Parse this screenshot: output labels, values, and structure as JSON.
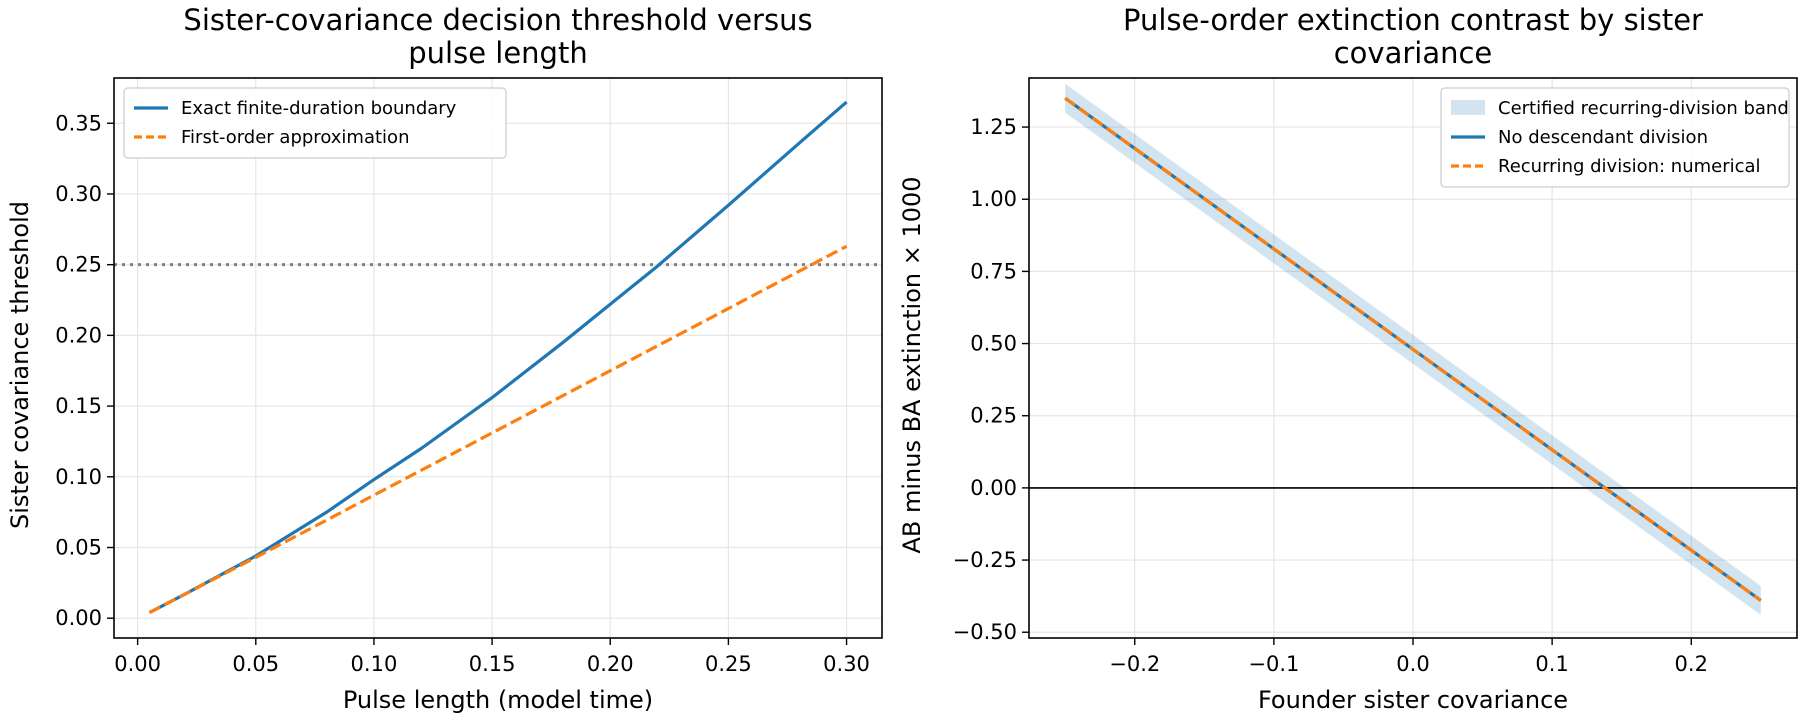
{
  "chart_data": [
    {
      "type": "line",
      "title_lines": [
        "Sister-covariance decision threshold versus",
        "pulse length"
      ],
      "xlabel": "Pulse length (model time)",
      "ylabel": "Sister covariance threshold",
      "xlim": [
        -0.01,
        0.315
      ],
      "ylim": [
        -0.014,
        0.382
      ],
      "xticks": [
        0.0,
        0.05,
        0.1,
        0.15,
        0.2,
        0.25,
        0.3
      ],
      "xtick_labels": [
        "0.00",
        "0.05",
        "0.10",
        "0.15",
        "0.20",
        "0.25",
        "0.30"
      ],
      "yticks": [
        0.0,
        0.05,
        0.1,
        0.15,
        0.2,
        0.25,
        0.3,
        0.35
      ],
      "ytick_labels": [
        "0.00",
        "0.05",
        "0.10",
        "0.15",
        "0.20",
        "0.25",
        "0.30",
        "0.35"
      ],
      "grid": true,
      "legend_position": "top-left",
      "reference_hline": {
        "y": 0.25,
        "color": "#808080",
        "style": "dotted"
      },
      "series": [
        {
          "name": "Exact finite-duration boundary",
          "color": "#1f77b4",
          "style": "solid",
          "x": [
            0.005,
            0.02,
            0.05,
            0.08,
            0.1,
            0.12,
            0.15,
            0.18,
            0.2,
            0.22,
            0.25,
            0.28,
            0.3
          ],
          "y": [
            0.004,
            0.017,
            0.044,
            0.075,
            0.098,
            0.12,
            0.156,
            0.195,
            0.222,
            0.249,
            0.292,
            0.336,
            0.365
          ]
        },
        {
          "name": "First-order approximation",
          "color": "#ff7f0e",
          "style": "dashed",
          "x": [
            0.005,
            0.05,
            0.1,
            0.15,
            0.2,
            0.25,
            0.3
          ],
          "y": [
            0.004,
            0.043,
            0.087,
            0.131,
            0.175,
            0.219,
            0.263
          ]
        }
      ]
    },
    {
      "type": "line",
      "title_lines": [
        "Pulse-order extinction contrast by sister",
        "covariance"
      ],
      "xlabel": "Founder sister covariance",
      "ylabel": "AB minus BA extinction × 1000",
      "xlim": [
        -0.276,
        0.276
      ],
      "ylim": [
        -0.52,
        1.42
      ],
      "xticks": [
        -0.2,
        -0.1,
        0.0,
        0.1,
        0.2
      ],
      "xtick_labels": [
        "−0.2",
        "−0.1",
        "0.0",
        "0.1",
        "0.2"
      ],
      "yticks": [
        -0.5,
        -0.25,
        0.0,
        0.25,
        0.5,
        0.75,
        1.0,
        1.25
      ],
      "ytick_labels": [
        "−0.50",
        "−0.25",
        "0.00",
        "0.25",
        "0.50",
        "0.75",
        "1.00",
        "1.25"
      ],
      "grid": true,
      "legend_position": "top-right",
      "reference_hline": {
        "y": 0.0,
        "color": "#000000",
        "style": "solid"
      },
      "band": {
        "name": "Certified recurring-division band",
        "color": "#1f77b4",
        "x": [
          -0.25,
          0.25
        ],
        "lower": [
          1.3,
          -0.44
        ],
        "upper": [
          1.4,
          -0.34
        ]
      },
      "series": [
        {
          "name": "No descendant division",
          "color": "#1f77b4",
          "style": "solid",
          "x": [
            -0.25,
            0.25
          ],
          "y": [
            1.35,
            -0.39
          ]
        },
        {
          "name": "Recurring division: numerical",
          "color": "#ff7f0e",
          "style": "dashed",
          "x": [
            -0.25,
            0.25
          ],
          "y": [
            1.35,
            -0.39
          ]
        }
      ]
    }
  ]
}
